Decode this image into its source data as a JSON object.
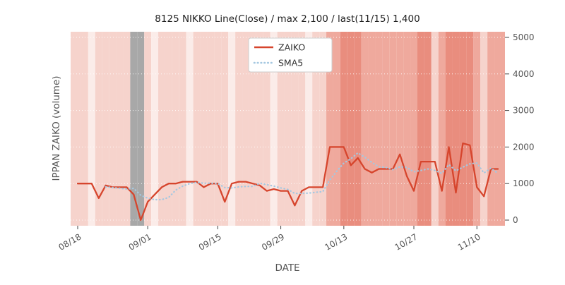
{
  "chart_data": {
    "type": "line",
    "title": "8125 NIKKO Line(Close) / max 2,100 / last(11/15) 1,400",
    "xlabel": "DATE",
    "ylabel": "IPPAN ZAIKO (volume)",
    "ylim": [
      0,
      5000
    ],
    "yticks": [
      0,
      1000,
      2000,
      3000,
      4000,
      5000
    ],
    "xticks": [
      "08/18",
      "09/01",
      "09/15",
      "09/29",
      "10/13",
      "10/27",
      "11/10"
    ],
    "grid": true,
    "grid_color": "#ffffff",
    "tick_text_color": "#555555",
    "title_text_color": "#1f1f1f",
    "x_dates": [
      "08/18",
      "08/21",
      "08/22",
      "08/23",
      "08/24",
      "08/25",
      "08/28",
      "08/29",
      "08/30",
      "08/31",
      "09/01",
      "09/04",
      "09/05",
      "09/06",
      "09/07",
      "09/08",
      "09/11",
      "09/12",
      "09/13",
      "09/14",
      "09/15",
      "09/19",
      "09/20",
      "09/21",
      "09/22",
      "09/25",
      "09/26",
      "09/27",
      "09/28",
      "09/29",
      "10/02",
      "10/03",
      "10/04",
      "10/05",
      "10/06",
      "10/10",
      "10/11",
      "10/12",
      "10/13",
      "10/16",
      "10/17",
      "10/18",
      "10/19",
      "10/20",
      "10/23",
      "10/24",
      "10/25",
      "10/26",
      "10/27",
      "10/30",
      "10/31",
      "11/01",
      "11/02",
      "11/06",
      "11/07",
      "11/08",
      "11/09",
      "11/10",
      "11/13",
      "11/14",
      "11/15"
    ],
    "series": [
      {
        "name": "ZAIKO",
        "color": "#d6452d",
        "style": "solid",
        "values": [
          1000,
          1000,
          1000,
          600,
          950,
          900,
          900,
          900,
          700,
          0,
          500,
          700,
          900,
          1000,
          1000,
          1050,
          1050,
          1050,
          900,
          1000,
          1000,
          500,
          1000,
          1050,
          1050,
          1000,
          950,
          800,
          850,
          800,
          800,
          400,
          800,
          900,
          900,
          900,
          2000,
          2000,
          2000,
          1500,
          1700,
          1400,
          1300,
          1400,
          1400,
          1400,
          1800,
          1200,
          800,
          1600,
          1600,
          1600,
          800,
          2000,
          750,
          2100,
          2050,
          900,
          650,
          1400,
          1400
        ]
      },
      {
        "name": "SMA5",
        "color": "#a5c8e1",
        "style": "dotted",
        "window": 5,
        "values": [
          null,
          null,
          null,
          null,
          910,
          890,
          870,
          850,
          870,
          680,
          600,
          560,
          560,
          620,
          820,
          930,
          1000,
          1030,
          1010,
          1010,
          1000,
          890,
          880,
          910,
          920,
          920,
          1010,
          970,
          930,
          880,
          840,
          730,
          730,
          740,
          760,
          780,
          1100,
          1340,
          1560,
          1680,
          1840,
          1720,
          1580,
          1460,
          1440,
          1380,
          1460,
          1440,
          1320,
          1360,
          1400,
          1360,
          1280,
          1520,
          1350,
          1450,
          1540,
          1560,
          1290,
          1420,
          1280
        ]
      }
    ],
    "legend": {
      "position": "upper center",
      "entries": [
        "ZAIKO",
        "SMA5"
      ]
    },
    "background_bands": {
      "levels": [
        1,
        1,
        0,
        1,
        1,
        1,
        1,
        1,
        "g",
        "g",
        1,
        0,
        1,
        1,
        1,
        1,
        0,
        1,
        1,
        1,
        1,
        1,
        0,
        1,
        1,
        1,
        1,
        1,
        0,
        1,
        1,
        1,
        1,
        0,
        1,
        1,
        2,
        2,
        3,
        3,
        3,
        2,
        2,
        2,
        2,
        2,
        2,
        2,
        2,
        3,
        3,
        1,
        2,
        3,
        3,
        3,
        3,
        2,
        1,
        2,
        2
      ],
      "colors": {
        "0": "#fbece9",
        "1": "#f6d3cc",
        "2": "#efa99d",
        "3": "#e98d7e",
        "g": "#a8a8a8"
      }
    }
  }
}
